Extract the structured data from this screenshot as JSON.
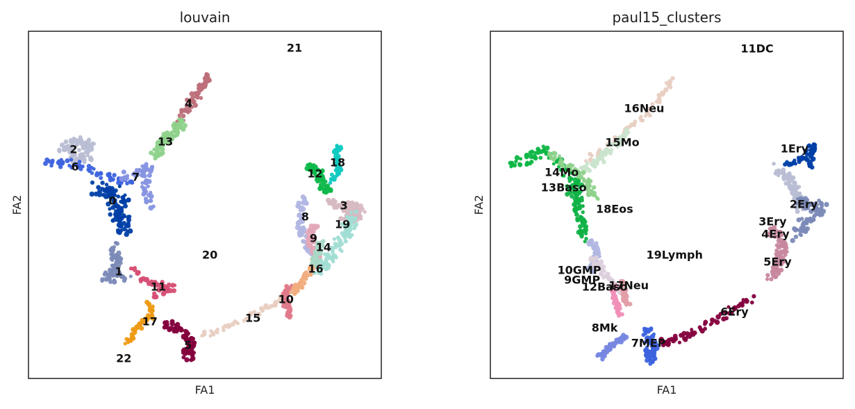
{
  "chart_data": [
    {
      "type": "scatter",
      "title": "louvain",
      "xlabel": "FA1",
      "ylabel": "FA2",
      "xlim": [
        0,
        100
      ],
      "ylim": [
        0,
        100
      ],
      "grid": false,
      "ticks": false,
      "labels": [
        {
          "text": "0",
          "x": 23.8,
          "y": 51,
          "color": "#003fa6"
        },
        {
          "text": "1",
          "x": 25.6,
          "y": 30.6,
          "color": "#7b8ab7"
        },
        {
          "text": "2",
          "x": 12.8,
          "y": 65.8,
          "color": "#b9bed4"
        },
        {
          "text": "3",
          "x": 89.4,
          "y": 49.6,
          "color": "#d7b9c2"
        },
        {
          "text": "4",
          "x": 45.4,
          "y": 79,
          "color": "#bd6f7a"
        },
        {
          "text": "5",
          "x": 45.2,
          "y": 9.4,
          "color": "#84003d"
        },
        {
          "text": "6",
          "x": 13.2,
          "y": 60.8,
          "color": "#3d63de"
        },
        {
          "text": "7",
          "x": 30.4,
          "y": 57.8,
          "color": "#8693e2"
        },
        {
          "text": "8",
          "x": 78.4,
          "y": 46.4,
          "color": "#b1b6e1"
        },
        {
          "text": "9",
          "x": 80.8,
          "y": 40.2,
          "color": "#e3a7b6"
        },
        {
          "text": "10",
          "x": 73,
          "y": 22.6,
          "color": "#df7a8b"
        },
        {
          "text": "11",
          "x": 36.8,
          "y": 26.2,
          "color": "#d64e74"
        },
        {
          "text": "12",
          "x": 81.2,
          "y": 58.8,
          "color": "#0eb84a"
        },
        {
          "text": "13",
          "x": 38.8,
          "y": 68,
          "color": "#8ed28b"
        },
        {
          "text": "14",
          "x": 83.6,
          "y": 37.6,
          "color": "#a8d8c6"
        },
        {
          "text": "15",
          "x": 63.6,
          "y": 17.2,
          "color": "#e8cfc2"
        },
        {
          "text": "16",
          "x": 81.4,
          "y": 31.4,
          "color": "#f0ad7e"
        },
        {
          "text": "17",
          "x": 34.4,
          "y": 16.2,
          "color": "#ee9a14"
        },
        {
          "text": "18",
          "x": 87.6,
          "y": 62,
          "color": "#10c9c1"
        },
        {
          "text": "19",
          "x": 89,
          "y": 44.2,
          "color": "#a1ddd4"
        },
        {
          "text": "20",
          "x": 51.4,
          "y": 35.4,
          "color": "#b2b2b2"
        },
        {
          "text": "21",
          "x": 75.4,
          "y": 95,
          "color": "#a1a1a1"
        },
        {
          "text": "22",
          "x": 27,
          "y": 5.6,
          "color": "#f4b5d2"
        }
      ]
    },
    {
      "type": "scatter",
      "title": "paul15_clusters",
      "xlabel": "FA1",
      "ylabel": "FA2",
      "xlim": [
        0,
        100
      ],
      "ylim": [
        0,
        100
      ],
      "grid": false,
      "ticks": false,
      "labels": [
        {
          "text": "11DC",
          "x": 75.6,
          "y": 94.8,
          "color": "#c15d72"
        },
        {
          "text": "16Neu",
          "x": 43.6,
          "y": 77.6,
          "color": "#e8cfc2"
        },
        {
          "text": "15Mo",
          "x": 37.4,
          "y": 67.8,
          "color": "#c9e4ce"
        },
        {
          "text": "1Ery",
          "x": 86.2,
          "y": 66,
          "color": "#003fa6"
        },
        {
          "text": "14Mo",
          "x": 20.2,
          "y": 59.2,
          "color": "#0db645"
        },
        {
          "text": "13Baso",
          "x": 20.8,
          "y": 54.8,
          "color": "#11b247"
        },
        {
          "text": "2Ery",
          "x": 88.8,
          "y": 50,
          "color": "#7b8ab7"
        },
        {
          "text": "18Eos",
          "x": 35.2,
          "y": 48.6,
          "color": "#f39c20"
        },
        {
          "text": "3Ery",
          "x": 80,
          "y": 45,
          "color": "#b9bed4"
        },
        {
          "text": "4Ery",
          "x": 80.8,
          "y": 41.4,
          "color": "#d7b9c2"
        },
        {
          "text": "19Lymph",
          "x": 52.2,
          "y": 35.4,
          "color": "#14c0b8"
        },
        {
          "text": "5Ery",
          "x": 81.4,
          "y": 33.4,
          "color": "#c7879e"
        },
        {
          "text": "10GMP",
          "x": 25.2,
          "y": 31,
          "color": "#dcd0dc"
        },
        {
          "text": "9GMP",
          "x": 26,
          "y": 28.2,
          "color": "#a8a8d6"
        },
        {
          "text": "12Baso",
          "x": 32.4,
          "y": 26.2,
          "color": "#f08fb8"
        },
        {
          "text": "17Neu",
          "x": 39.2,
          "y": 26.6,
          "color": "#e39ea8"
        },
        {
          "text": "6Ery",
          "x": 69.2,
          "y": 19,
          "color": "#84003d"
        },
        {
          "text": "8Mk",
          "x": 32.4,
          "y": 14.4,
          "color": "#7686e0"
        },
        {
          "text": "7MEP",
          "x": 44.8,
          "y": 10,
          "color": "#3d63de"
        }
      ]
    }
  ]
}
